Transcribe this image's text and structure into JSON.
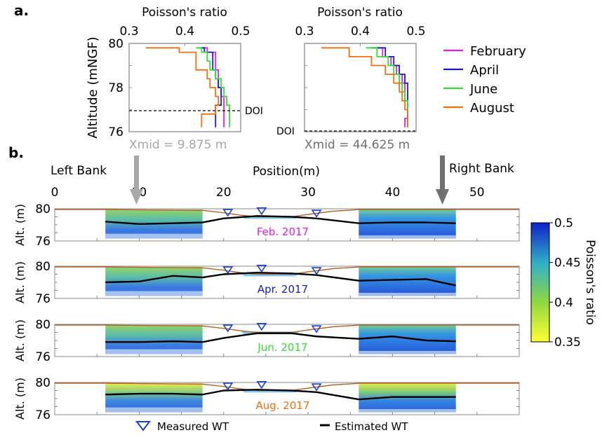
{
  "panel_a": {
    "label": "a.",
    "xlabel": "Poisson's ratio",
    "ylabel": "Altitude (mNGF)",
    "xticks": [
      "0.3",
      "0.4",
      "0.5"
    ],
    "yticks": [
      "80",
      "78",
      "76"
    ],
    "doi_label": "DOI",
    "legend": [
      "February",
      "April",
      "June",
      "August"
    ],
    "colors": {
      "February": "#e020e0",
      "April": "#1a1acc",
      "June": "#33dd33",
      "August": "#f07010"
    },
    "xmid_left": "Xmid = 9.875 m",
    "xmid_right": "Xmid = 44.625 m"
  },
  "panel_b": {
    "label": "b.",
    "left_bank": "Left Bank",
    "right_bank": "Right Bank",
    "xlabel": "Position(m)",
    "xticks": [
      "0",
      "10",
      "20",
      "30",
      "40",
      "50"
    ],
    "ylabel": "Alt. (m)",
    "yticks": [
      "80",
      "76"
    ],
    "rows": [
      "Feb. 2017",
      "Apr. 2017",
      "Jun. 2017",
      "Aug. 2017"
    ],
    "row_colors": [
      "#e020e0",
      "#1a1acc",
      "#33dd33",
      "#f07010"
    ],
    "legend_measured": "Measured WT",
    "legend_estimated": "Estimated WT",
    "colorbar_label": "Poisson's ratio",
    "colorbar_ticks": [
      "0.5",
      "0.45",
      "0.4",
      "0.35"
    ]
  },
  "chart_data": [
    {
      "type": "line",
      "title": "",
      "xlabel": "Poisson's ratio",
      "ylabel": "Altitude (mNGF)",
      "xlim": [
        0.3,
        0.5
      ],
      "ylim": [
        76,
        80
      ],
      "doi": 77.1,
      "xmid": "Xmid = 9.875 m",
      "series": [
        {
          "name": "February",
          "x": [
            0.43,
            0.44,
            0.455,
            0.455,
            0.46,
            0.46,
            0.465,
            0.47,
            0.47,
            0.47
          ],
          "y": [
            79.8,
            79.6,
            79.2,
            78.8,
            78.4,
            78.0,
            77.6,
            77.2,
            76.8,
            76.2
          ]
        },
        {
          "name": "April",
          "x": [
            0.425,
            0.435,
            0.45,
            0.45,
            0.455,
            0.46,
            0.465,
            0.465,
            0.455,
            0.455
          ],
          "y": [
            79.8,
            79.6,
            79.2,
            78.8,
            78.4,
            78.0,
            77.6,
            77.2,
            76.8,
            76.2
          ]
        },
        {
          "name": "June",
          "x": [
            0.42,
            0.43,
            0.44,
            0.445,
            0.455,
            0.465,
            0.47,
            0.475,
            0.48,
            0.48
          ],
          "y": [
            79.8,
            79.6,
            79.2,
            78.8,
            78.4,
            78.0,
            77.6,
            77.2,
            76.8,
            76.2
          ]
        },
        {
          "name": "August",
          "x": [
            0.33,
            0.39,
            0.42,
            0.42,
            0.44,
            0.445,
            0.455,
            0.46,
            0.455,
            0.43
          ],
          "y": [
            79.8,
            79.6,
            79.2,
            78.8,
            78.4,
            78.0,
            77.6,
            77.2,
            76.8,
            76.2
          ]
        }
      ]
    },
    {
      "type": "line",
      "title": "",
      "xlabel": "Poisson's ratio",
      "ylabel": "",
      "xlim": [
        0.3,
        0.5
      ],
      "ylim": [
        76,
        80
      ],
      "doi": 76.0,
      "xmid": "Xmid = 44.625 m",
      "series": [
        {
          "name": "February",
          "x": [
            0.42,
            0.44,
            0.455,
            0.465,
            0.475,
            0.48,
            0.48,
            0.485,
            0.485,
            0.48
          ],
          "y": [
            79.8,
            79.4,
            79.0,
            78.6,
            78.2,
            77.8,
            77.4,
            77.0,
            76.6,
            76.2
          ]
        },
        {
          "name": "April",
          "x": [
            0.42,
            0.445,
            0.46,
            0.47,
            0.48,
            0.485,
            0.485,
            0.485,
            0.485,
            0.485
          ],
          "y": [
            79.8,
            79.4,
            79.0,
            78.6,
            78.2,
            77.8,
            77.4,
            77.0,
            76.6,
            76.2
          ]
        },
        {
          "name": "June",
          "x": [
            0.41,
            0.43,
            0.45,
            0.46,
            0.47,
            0.475,
            0.48,
            0.485,
            0.485,
            0.485
          ],
          "y": [
            79.8,
            79.4,
            79.0,
            78.6,
            78.2,
            77.8,
            77.4,
            77.0,
            76.6,
            76.2
          ]
        },
        {
          "name": "August",
          "x": [
            0.33,
            0.38,
            0.42,
            0.445,
            0.46,
            0.47,
            0.475,
            0.48,
            0.485,
            0.485
          ],
          "y": [
            79.8,
            79.4,
            79.0,
            78.6,
            78.2,
            77.8,
            77.4,
            77.0,
            76.6,
            76.2
          ]
        }
      ]
    },
    {
      "type": "heatmap",
      "title": "",
      "xlabel": "Position(m)",
      "ylabel": "Alt. (m)",
      "xlim": [
        0,
        55
      ],
      "ylim": [
        76,
        80
      ],
      "colorbar": {
        "label": "Poisson's ratio",
        "range": [
          0.35,
          0.5
        ]
      },
      "left_bank_x": [
        6,
        17.5
      ],
      "right_bank_x": [
        36,
        47.5
      ],
      "measured_wt": [
        {
          "x": 20.5,
          "y": 79.3
        },
        {
          "x": 24.5,
          "y": 79.5
        },
        {
          "x": 31,
          "y": 79.2
        }
      ],
      "panels": [
        {
          "name": "Feb. 2017",
          "estimated_wt": {
            "x": [
              6,
              10,
              14,
              17.5,
              20,
              24,
              28,
              31,
              36,
              40,
              44,
              47.5
            ],
            "y": [
              78.4,
              78.1,
              78.2,
              78.3,
              78.8,
              79.1,
              79.0,
              78.8,
              78.2,
              78.3,
              78.3,
              78.2
            ]
          }
        },
        {
          "name": "Apr. 2017",
          "estimated_wt": {
            "x": [
              6,
              10,
              14,
              17.5,
              20,
              24,
              28,
              31,
              36,
              40,
              44,
              47.5
            ],
            "y": [
              78.0,
              78.1,
              78.8,
              78.6,
              79.0,
              79.2,
              79.1,
              78.9,
              78.2,
              78.3,
              78.4,
              77.6
            ]
          }
        },
        {
          "name": "Jun. 2017",
          "estimated_wt": {
            "x": [
              6,
              10,
              14,
              17.5,
              20,
              24,
              28,
              31,
              36,
              40,
              44,
              47.5
            ],
            "y": [
              77.8,
              77.8,
              77.9,
              77.8,
              78.3,
              78.9,
              78.9,
              78.5,
              78.2,
              78.5,
              78.0,
              77.9
            ]
          }
        },
        {
          "name": "Aug. 2017",
          "estimated_wt": {
            "x": [
              6,
              10,
              14,
              17.5,
              20,
              24,
              28,
              31,
              36,
              40,
              44,
              47.5
            ],
            "y": [
              78.5,
              78.6,
              78.6,
              78.5,
              79.0,
              79.1,
              79.0,
              78.8,
              77.9,
              78.2,
              78.2,
              78.2
            ]
          }
        }
      ]
    }
  ]
}
